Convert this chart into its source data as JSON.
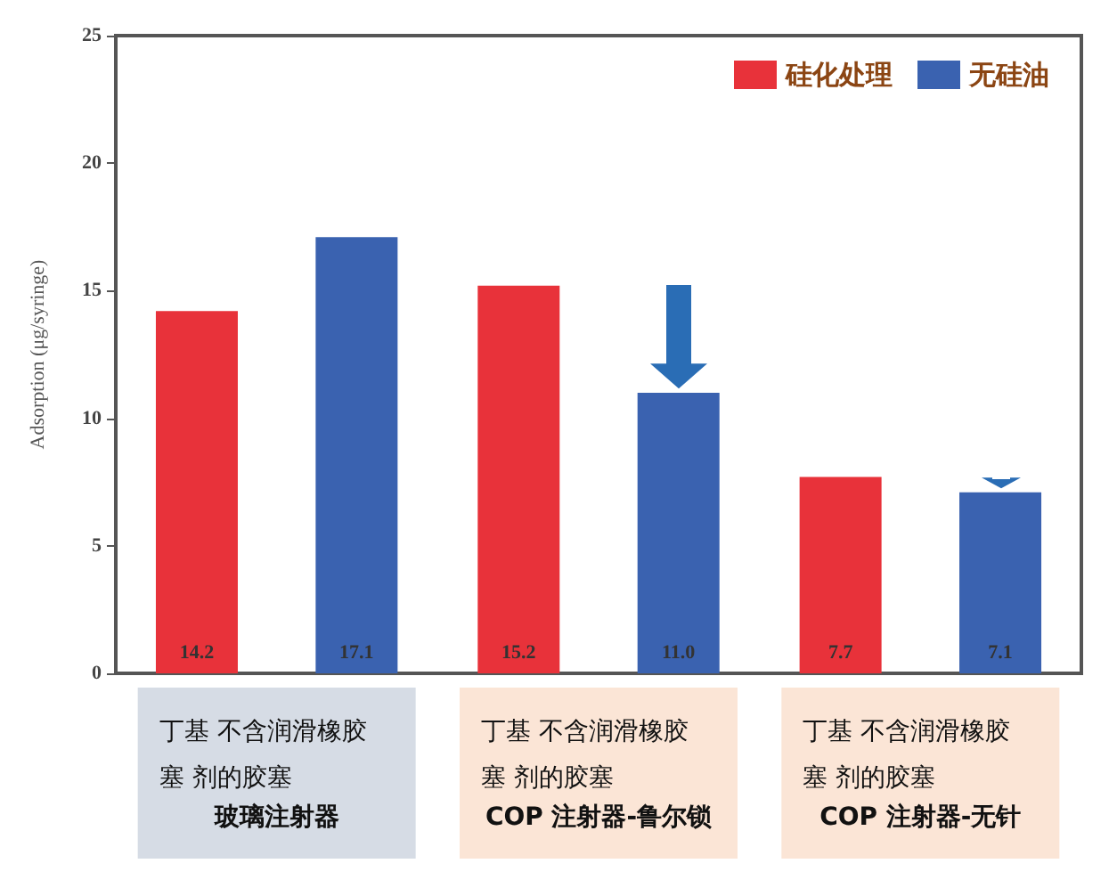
{
  "chart_data": {
    "type": "bar",
    "ylabel": "Adsorption (μg/syringe)",
    "categories": [
      null,
      null,
      null
    ],
    "series": [
      {
        "name": "硅化处理",
        "color": "#e8323a",
        "values": [
          14.2,
          15.2,
          7.7
        ],
        "value_labels": [
          "14.2",
          "15.2",
          "7.7"
        ]
      },
      {
        "name": "无硅油",
        "color": "#3a62b0",
        "values": [
          17.1,
          11.0,
          7.1
        ],
        "value_labels": [
          "17.1",
          "11.0",
          "7.1"
        ]
      }
    ],
    "ylim": [
      0,
      25
    ],
    "yticks": [
      0,
      5,
      10,
      15,
      20,
      25
    ],
    "grid": false,
    "legend": "top right",
    "annotations": [
      "丁基 不含润滑橡胶塞 剂的胶塞",
      "玻璃注射器",
      "丁基 不含润滑橡胶塞 剂的胶塞",
      "COP 注射器-鲁尔锁",
      "丁基 不含润滑橡胶塞 剂的胶塞",
      "COP 注射器-无针"
    ]
  }
}
